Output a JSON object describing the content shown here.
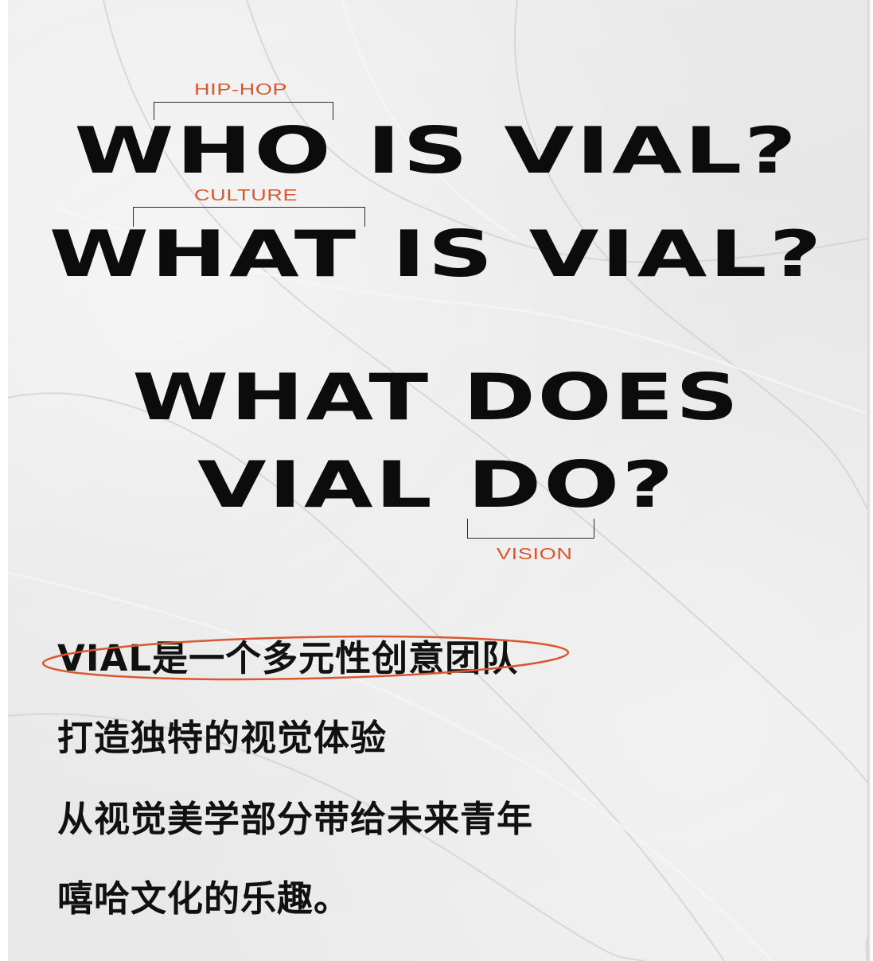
{
  "headlines": {
    "line1": "WHO IS VIAL?",
    "line2": "WHAT IS VIAL?",
    "line3": "WHAT DOES",
    "line4": "VIAL DO?"
  },
  "tags": {
    "hiphop": "HIP-HOP",
    "culture": "CULTURE",
    "vision": "VISION"
  },
  "body": {
    "line1": "VIAL是一个多元性创意团队",
    "line2": "打造独特的视觉体验",
    "line3": "从视觉美学部分带给未来青年",
    "line4": "嘻哈文化的乐趣。"
  },
  "colors": {
    "accent": "#d9572e",
    "text": "#0c0c0c",
    "paper": "#e9e9e9"
  }
}
